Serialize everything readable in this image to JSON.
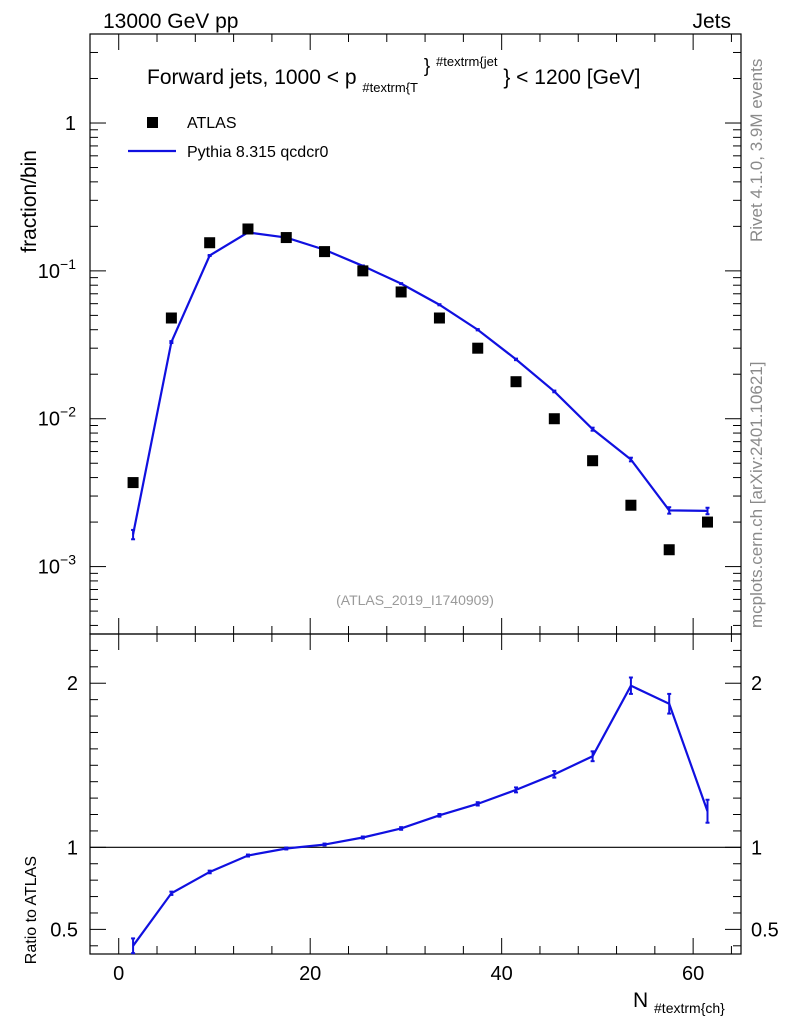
{
  "header": {
    "energy": "13000 GeV pp",
    "category": "Jets",
    "side_rivet": "Rivet 4.1.0,  3.9M events",
    "side_mcplots": "mcplots.cern.ch [arXiv:2401.10621]",
    "analysis_id": "(ATLAS_2019_I1740909)"
  },
  "chart_data": [
    {
      "type": "scatter",
      "panel": "main",
      "title_parts": {
        "pre": "Forward jets, 1000 < p",
        "sub": "#textrm{T",
        "sup_close": "}",
        "sup": "#textrm{jet",
        "post": "} < 1200 [GeV]"
      },
      "ylabel": "fraction/bin",
      "yscale": "log",
      "ylim": [
        0.00035,
        4.0
      ],
      "xlim": [
        -3,
        65
      ],
      "y_ticks": [
        {
          "value": 0.001,
          "base": "10",
          "exp": "−3"
        },
        {
          "value": 0.01,
          "base": "10",
          "exp": "−2"
        },
        {
          "value": 0.1,
          "base": "10",
          "exp": "−1"
        },
        {
          "value": 1,
          "base": "1",
          "exp": ""
        }
      ],
      "legend": [
        {
          "label": "ATLAS",
          "style": "marker",
          "color": "#000000"
        },
        {
          "label": "Pythia 8.315 qcdcr0",
          "style": "line",
          "color": "#1010e0"
        }
      ],
      "x": [
        1.5,
        5.5,
        9.5,
        13.5,
        17.5,
        21.5,
        25.5,
        29.5,
        33.5,
        37.5,
        41.5,
        45.5,
        49.5,
        53.5,
        57.5,
        61.5
      ],
      "series": [
        {
          "name": "ATLAS",
          "values": [
            0.0037,
            0.048,
            0.155,
            0.192,
            0.168,
            0.135,
            0.1,
            0.072,
            0.048,
            0.03,
            0.0178,
            0.01,
            0.0052,
            0.0026,
            0.0013,
            0.002
          ]
        },
        {
          "name": "Pythia 8.315 qcdcr0",
          "values": [
            0.00165,
            0.033,
            0.127,
            0.182,
            0.168,
            0.139,
            0.108,
            0.082,
            0.059,
            0.04,
            0.0252,
            0.0153,
            0.0085,
            0.0053,
            0.0024,
            0.00238
          ],
          "errors": [
            0.00012,
            0.0005,
            0.001,
            0.001,
            0.001,
            0.001,
            0.0008,
            0.0006,
            0.0005,
            0.0004,
            0.0003,
            0.0002,
            0.0002,
            0.00015,
            0.00012,
            0.00012
          ]
        }
      ]
    },
    {
      "type": "line",
      "panel": "ratio",
      "ylabel": "Ratio to ATLAS",
      "xlabel_parts": {
        "main": "N",
        "sub": "#textrm{ch}"
      },
      "ylim": [
        0.35,
        2.3
      ],
      "xlim": [
        -3,
        65
      ],
      "reference_line": 1,
      "y_ticks": [
        {
          "value": 0.5,
          "label": "0.5"
        },
        {
          "value": 1,
          "label": "1"
        },
        {
          "value": 2,
          "label": "2"
        }
      ],
      "x_ticks": [
        {
          "value": 0,
          "label": "0"
        },
        {
          "value": 20,
          "label": "20"
        },
        {
          "value": 40,
          "label": "40"
        },
        {
          "value": 60,
          "label": "60"
        }
      ],
      "x": [
        1.5,
        5.5,
        9.5,
        13.5,
        17.5,
        21.5,
        25.5,
        29.5,
        33.5,
        37.5,
        41.5,
        45.5,
        49.5,
        53.5,
        57.5,
        61.5
      ],
      "series": [
        {
          "name": "Pythia 8.315 qcdcr0",
          "values": [
            0.4,
            0.72,
            0.85,
            0.95,
            0.993,
            1.017,
            1.06,
            1.115,
            1.195,
            1.265,
            1.35,
            1.445,
            1.555,
            1.985,
            1.875,
            1.22
          ],
          "errors": [
            0.045,
            0.01,
            0.008,
            0.006,
            0.006,
            0.006,
            0.006,
            0.008,
            0.008,
            0.01,
            0.015,
            0.02,
            0.03,
            0.05,
            0.06,
            0.07
          ]
        }
      ]
    }
  ]
}
